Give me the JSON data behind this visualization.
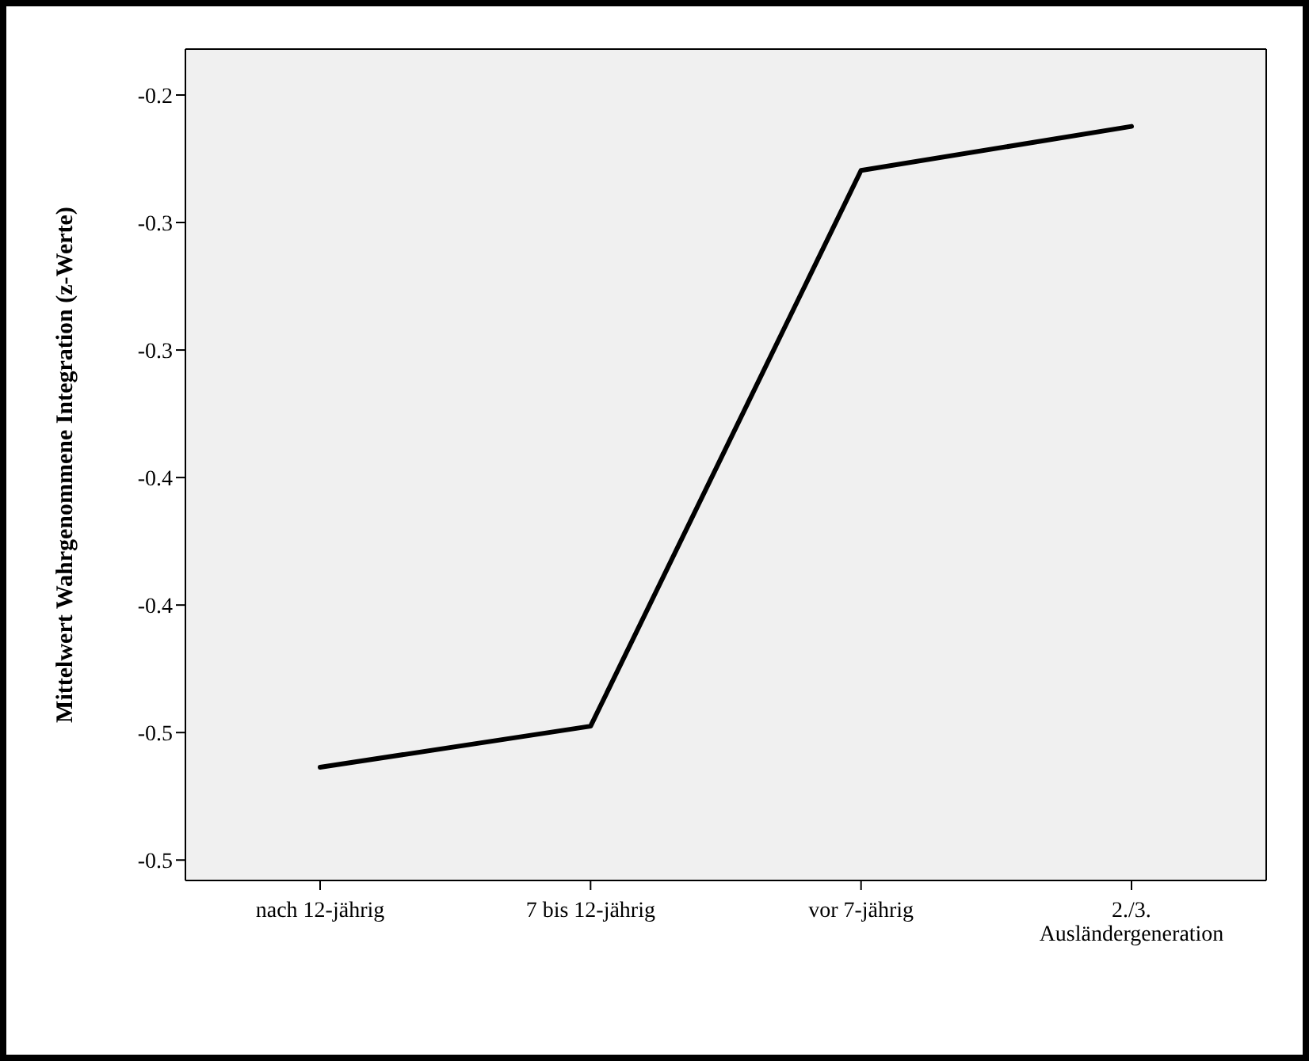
{
  "chart_data": {
    "type": "line",
    "ylabel": "Mittelwert Wahrgenommene Integration (z-Werte)",
    "categories": [
      "nach 12-jährig",
      "7 bis 12-jährig",
      "vor 7-jährig",
      "2./3.\nAusländergeneration"
    ],
    "series": [
      {
        "color": "#000000",
        "values": [
          -0.4636,
          -0.4475,
          -0.2296,
          -0.2123
        ]
      }
    ],
    "ylim": [
      -0.508,
      -0.182
    ],
    "yticks": [
      {
        "value": -0.2,
        "label": "-0.2"
      },
      {
        "value": -0.25,
        "label": "-0.3"
      },
      {
        "value": -0.3,
        "label": "-0.3"
      },
      {
        "value": -0.35,
        "label": "-0.4"
      },
      {
        "value": -0.4,
        "label": "-0.4"
      },
      {
        "value": -0.45,
        "label": "-0.5"
      },
      {
        "value": -0.5,
        "label": "-0.5"
      }
    ],
    "grid": false,
    "legend": false,
    "marker": "none",
    "line_style": "solid"
  }
}
